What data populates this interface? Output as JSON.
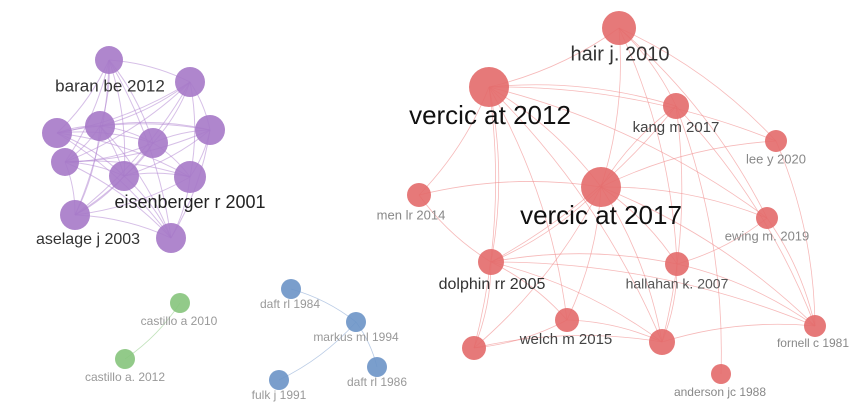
{
  "nodes": [
    {
      "label": "hair j. 2010"
    },
    {
      "label": "vercic at 2012"
    },
    {
      "label": "kang m 2017"
    },
    {
      "label": "lee y 2020"
    },
    {
      "label": "men lr 2014"
    },
    {
      "label": "vercic at 2017"
    },
    {
      "label": "ewing m. 2019"
    },
    {
      "label": "dolphin rr 2005"
    },
    {
      "label": "hallahan k. 2007"
    },
    {
      "label": "welch m 2015"
    },
    {
      "label": "fornell c 1981"
    },
    {
      "label": "anderson jc 1988"
    },
    {
      "label": "baran be 2012"
    },
    {
      "label": "eisenberger r 2001"
    },
    {
      "label": "aselage j 2003"
    },
    {
      "label": "castillo a 2010"
    },
    {
      "label": "castillo a. 2012"
    },
    {
      "label": "daft rl 1984"
    },
    {
      "label": "markus ml 1994"
    },
    {
      "label": "daft rl 1986"
    },
    {
      "label": "fulk j 1991"
    }
  ]
}
